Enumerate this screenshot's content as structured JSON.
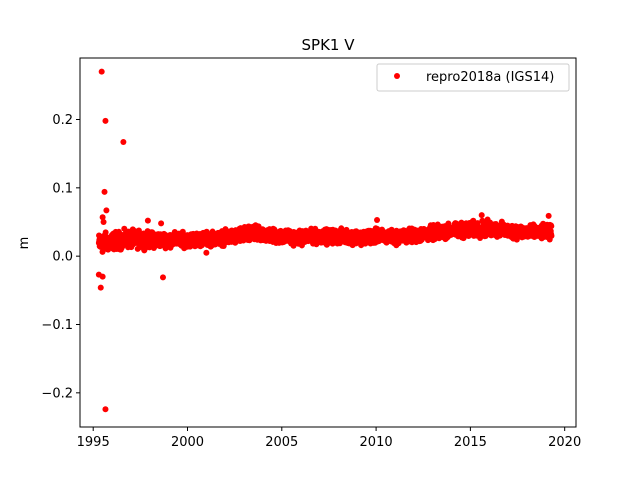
{
  "chart_data": {
    "type": "scatter",
    "title": "SPK1 V",
    "xlabel": "",
    "ylabel": "m",
    "xlim": [
      1994.3,
      2020.6
    ],
    "ylim": [
      -0.25,
      0.29
    ],
    "xticks": [
      1995,
      2000,
      2005,
      2010,
      2015,
      2020
    ],
    "yticks": [
      -0.2,
      -0.1,
      0.0,
      0.1,
      0.2
    ],
    "ytick_labels": [
      "−0.2",
      "−0.1",
      "0.0",
      "0.1",
      "0.2"
    ],
    "grid": false,
    "legend_position": "top-right",
    "series": [
      {
        "name": "repro2018a (IGS14)",
        "color": "#ff0000",
        "marker": "circle",
        "band": {
          "x": [
            1995.3,
            1996.0,
            1997.0,
            1998.0,
            1999.0,
            2000.0,
            2001.0,
            2002.0,
            2003.0,
            2004.0,
            2005.0,
            2006.0,
            2007.0,
            2008.0,
            2009.0,
            2010.0,
            2011.0,
            2012.0,
            2013.0,
            2014.0,
            2015.0,
            2016.0,
            2017.0,
            2018.0,
            2019.3
          ],
          "center": [
            0.018,
            0.022,
            0.025,
            0.024,
            0.024,
            0.024,
            0.025,
            0.027,
            0.031,
            0.032,
            0.028,
            0.027,
            0.029,
            0.029,
            0.028,
            0.029,
            0.028,
            0.03,
            0.034,
            0.037,
            0.039,
            0.04,
            0.037,
            0.035,
            0.035
          ],
          "spread": [
            0.012,
            0.01,
            0.01,
            0.009,
            0.008,
            0.008,
            0.008,
            0.008,
            0.009,
            0.009,
            0.008,
            0.008,
            0.008,
            0.008,
            0.008,
            0.008,
            0.008,
            0.008,
            0.008,
            0.008,
            0.009,
            0.009,
            0.008,
            0.008,
            0.008
          ]
        },
        "outliers": [
          {
            "x": 1995.45,
            "y": 0.27
          },
          {
            "x": 1995.65,
            "y": 0.198
          },
          {
            "x": 1996.6,
            "y": 0.167
          },
          {
            "x": 1995.6,
            "y": 0.094
          },
          {
            "x": 1995.7,
            "y": 0.067
          },
          {
            "x": 1995.5,
            "y": 0.057
          },
          {
            "x": 1995.55,
            "y": 0.05
          },
          {
            "x": 1995.3,
            "y": -0.027
          },
          {
            "x": 1995.5,
            "y": -0.03
          },
          {
            "x": 1995.4,
            "y": -0.046
          },
          {
            "x": 1995.65,
            "y": -0.224
          },
          {
            "x": 1998.6,
            "y": 0.048
          },
          {
            "x": 1998.7,
            "y": -0.031
          },
          {
            "x": 2010.05,
            "y": 0.053
          },
          {
            "x": 2019.15,
            "y": 0.059
          },
          {
            "x": 2015.6,
            "y": 0.06
          },
          {
            "x": 1997.9,
            "y": 0.052
          },
          {
            "x": 2001.0,
            "y": 0.005
          }
        ]
      }
    ]
  }
}
